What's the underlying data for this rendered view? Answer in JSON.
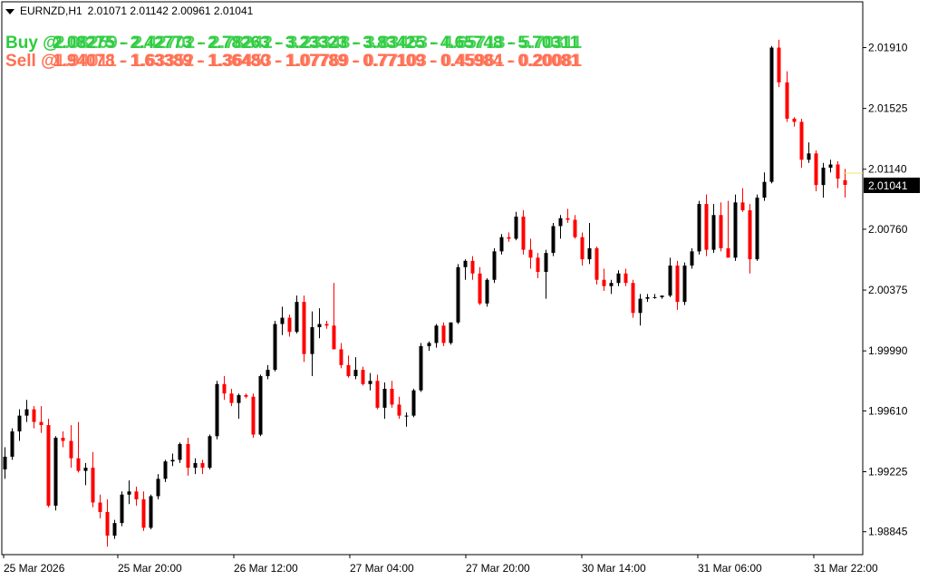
{
  "header": {
    "symbol": "EURNZD,H1",
    "ohlc": "2.01071 2.01142 2.00961 2.01041"
  },
  "overlay": {
    "buy_label": "Buy @",
    "buy_levels": [
      "2.08275 - 2.42773 - 2.78263 - 3.23323 - 3.83425 - 4.65748 - 5.70311",
      "2.08259 - 2.42702 - 2.78242 - 3.23348 - 3.83453 - 4.65713 - 5.70311"
    ],
    "sell_label": "Sell @",
    "sell_levels": [
      "1.94078 - 1.63389 - 1.36480 - 1.07789 - 0.77109 - 0.45984 - 0.20081",
      "1.94011 - 1.63352 - 1.36453 - 1.07769 - 0.77103 - 0.45961 - 0.20081"
    ]
  },
  "colors": {
    "bull": "#000000",
    "bear": "#ff0000",
    "buy_text": "#2ecc40",
    "sell_text": "#ff6f52",
    "price_tag_bg": "#000000",
    "price_tag_text": "#ffffff",
    "current_line": "#f5e66a"
  },
  "chart_data": {
    "type": "candlestick",
    "title": "EURNZD,H1",
    "xlabel": "",
    "ylabel": "",
    "ylim": [
      1.987,
      2.022
    ],
    "y_ticks": [
      "2.01910",
      "2.01525",
      "2.01140",
      "2.00760",
      "2.00375",
      "1.99990",
      "1.99610",
      "1.99225",
      "1.98845"
    ],
    "x_ticks": [
      "25 Mar 2026",
      "25 Mar 20:00",
      "26 Mar 12:00",
      "27 Mar 04:00",
      "27 Mar 20:00",
      "30 Mar 14:00",
      "31 Mar 06:00",
      "31 Mar 22:00"
    ],
    "current_price": "2.01041",
    "candles": [
      [
        1.9924,
        1.9938,
        1.9918,
        1.9932
      ],
      [
        1.9932,
        1.995,
        1.993,
        1.9948
      ],
      [
        1.9948,
        1.9962,
        1.9942,
        1.9958
      ],
      [
        1.9958,
        1.9968,
        1.9954,
        1.9962
      ],
      [
        1.9962,
        1.9964,
        1.995,
        1.9954
      ],
      [
        1.9954,
        1.9964,
        1.9947,
        1.9952
      ],
      [
        1.9952,
        1.9956,
        1.99,
        1.9901
      ],
      [
        1.9901,
        1.9945,
        1.9898,
        1.9944
      ],
      [
        1.9944,
        1.9948,
        1.9938,
        1.9942
      ],
      [
        1.9942,
        1.9952,
        1.9925,
        1.9931
      ],
      [
        1.9931,
        1.9954,
        1.9922,
        1.9923
      ],
      [
        1.9923,
        1.9928,
        1.9914,
        1.9925
      ],
      [
        1.9925,
        1.9935,
        1.99,
        1.9903
      ],
      [
        1.9903,
        1.9908,
        1.9893,
        1.9897
      ],
      [
        1.9897,
        1.9905,
        1.9875,
        1.9882
      ],
      [
        1.9882,
        1.9892,
        1.988,
        1.989
      ],
      [
        1.989,
        1.991,
        1.9888,
        1.9908
      ],
      [
        1.9908,
        1.9917,
        1.9902,
        1.991
      ],
      [
        1.991,
        1.9913,
        1.9901,
        1.9905
      ],
      [
        1.9905,
        1.991,
        1.9885,
        1.9887
      ],
      [
        1.9887,
        1.9908,
        1.9886,
        1.9907
      ],
      [
        1.9907,
        1.9921,
        1.9905,
        1.9918
      ],
      [
        1.9918,
        1.993,
        1.9916,
        1.9929
      ],
      [
        1.9929,
        1.9934,
        1.9926,
        1.993
      ],
      [
        1.993,
        1.9941,
        1.9928,
        1.994
      ],
      [
        1.994,
        1.9944,
        1.992,
        1.9925
      ],
      [
        1.9925,
        1.9931,
        1.9921,
        1.9928
      ],
      [
        1.9928,
        1.993,
        1.9921,
        1.9925
      ],
      [
        1.9925,
        1.9946,
        1.9924,
        1.9945
      ],
      [
        1.9945,
        1.998,
        1.9943,
        1.9978
      ],
      [
        1.9978,
        1.9983,
        1.9968,
        1.9972
      ],
      [
        1.9972,
        1.9975,
        1.9964,
        1.9966
      ],
      [
        1.9966,
        1.9972,
        1.9956,
        1.9971
      ],
      [
        1.9971,
        1.9972,
        1.9969,
        1.997
      ],
      [
        1.997,
        1.9972,
        1.9944,
        1.9946
      ],
      [
        1.9946,
        1.9984,
        1.9945,
        1.9983
      ],
      [
        1.9983,
        1.999,
        1.9981,
        1.9987
      ],
      [
        1.9987,
        2.0018,
        1.9986,
        2.0016
      ],
      [
        2.0016,
        2.0027,
        2.0009,
        2.002
      ],
      [
        2.002,
        2.0022,
        2.0008,
        2.0011
      ],
      [
        2.0011,
        2.0034,
        2.001,
        2.003
      ],
      [
        2.003,
        2.0034,
        1.9992,
        1.9997
      ],
      [
        1.9997,
        2.0024,
        1.9983,
        2.0014
      ],
      [
        2.0014,
        2.0026,
        2.0007,
        2.0016
      ],
      [
        2.0016,
        2.0018,
        2.0013,
        2.0015
      ],
      [
        2.0015,
        2.0042,
        2.0,
        2.0
      ],
      [
        2.0,
        2.0004,
        1.9988,
        1.999
      ],
      [
        1.999,
        1.9996,
        1.9982,
        1.9983
      ],
      [
        1.9983,
        1.9995,
        1.9981,
        1.9987
      ],
      [
        1.9987,
        1.9989,
        1.9977,
        1.9978
      ],
      [
        1.9978,
        1.9985,
        1.9974,
        1.998
      ],
      [
        1.998,
        1.9984,
        1.9962,
        1.9963
      ],
      [
        1.9963,
        1.9979,
        1.9956,
        1.9975
      ],
      [
        1.9975,
        1.998,
        1.9963,
        1.9965
      ],
      [
        1.9965,
        1.997,
        1.9956,
        1.9958
      ],
      [
        1.9958,
        1.996,
        1.9951,
        1.9958
      ],
      [
        1.9958,
        1.9975,
        1.9957,
        1.9974
      ],
      [
        1.9974,
        2.0004,
        1.9973,
        2.0002
      ],
      [
        2.0002,
        2.0005,
        1.9999,
        2.0004
      ],
      [
        2.0004,
        2.0016,
        2.0001,
        2.0015
      ],
      [
        2.0015,
        2.0017,
        2.0002,
        2.0004
      ],
      [
        2.0004,
        2.0017,
        2.0003,
        2.0017
      ],
      [
        2.0017,
        2.0054,
        2.0016,
        2.0052
      ],
      [
        2.0052,
        2.0057,
        2.0044,
        2.0056
      ],
      [
        2.0056,
        2.0059,
        2.0044,
        2.0048
      ],
      [
        2.0048,
        2.0052,
        2.0028,
        2.0029
      ],
      [
        2.0029,
        2.0045,
        2.0027,
        2.0044
      ],
      [
        2.0044,
        2.0064,
        2.0042,
        2.0062
      ],
      [
        2.0062,
        2.0073,
        2.006,
        2.0071
      ],
      [
        2.0071,
        2.0074,
        2.0068,
        2.007
      ],
      [
        2.007,
        2.0087,
        2.0069,
        2.0084
      ],
      [
        2.0084,
        2.0088,
        2.006,
        2.0063
      ],
      [
        2.0063,
        2.007,
        2.0051,
        2.0058
      ],
      [
        2.0058,
        2.0061,
        2.0045,
        2.0049
      ],
      [
        2.0049,
        2.0063,
        2.0032,
        2.0061
      ],
      [
        2.0061,
        2.008,
        2.0059,
        2.0078
      ],
      [
        2.0078,
        2.0085,
        2.007,
        2.0083
      ],
      [
        2.0083,
        2.0089,
        2.008,
        2.0082
      ],
      [
        2.0082,
        2.0085,
        2.007,
        2.0071
      ],
      [
        2.0071,
        2.0074,
        2.0053,
        2.0057
      ],
      [
        2.0057,
        2.008,
        2.0054,
        2.0064
      ],
      [
        2.0064,
        2.0065,
        2.0041,
        2.0044
      ],
      [
        2.0044,
        2.0051,
        2.0037,
        2.004
      ],
      [
        2.004,
        2.0044,
        2.0035,
        2.0042
      ],
      [
        2.0042,
        2.005,
        2.004,
        2.0048
      ],
      [
        2.0048,
        2.0051,
        2.004,
        2.0042
      ],
      [
        2.0042,
        2.0044,
        2.002,
        2.0023
      ],
      [
        2.0023,
        2.0035,
        2.0015,
        2.0032
      ],
      [
        2.0032,
        2.0035,
        2.003,
        2.0033
      ],
      [
        2.0033,
        2.0035,
        2.0032,
        2.0033
      ],
      [
        2.0033,
        2.0034,
        2.0032,
        2.0034
      ],
      [
        2.0034,
        2.0058,
        2.0033,
        2.0053
      ],
      [
        2.0053,
        2.0056,
        2.0025,
        2.003
      ],
      [
        2.003,
        2.0055,
        2.0028,
        2.0053
      ],
      [
        2.0053,
        2.0064,
        2.0051,
        2.0062
      ],
      [
        2.0062,
        2.0094,
        2.006,
        2.0092
      ],
      [
        2.0092,
        2.0098,
        2.0059,
        2.0063
      ],
      [
        2.0063,
        2.0092,
        2.0061,
        2.0085
      ],
      [
        2.0085,
        2.0093,
        2.0062,
        2.0064
      ],
      [
        2.0064,
        2.0094,
        2.0061,
        2.0058
      ],
      [
        2.0058,
        2.0098,
        2.0056,
        2.0093
      ],
      [
        2.0093,
        2.0102,
        2.0087,
        2.0088
      ],
      [
        2.0088,
        2.0092,
        2.0048,
        2.0057
      ],
      [
        2.0057,
        2.0098,
        2.0056,
        2.0096
      ],
      [
        2.0096,
        2.0112,
        2.0094,
        2.0106
      ],
      [
        2.0106,
        2.0192,
        2.0105,
        2.0191
      ],
      [
        2.0191,
        2.0196,
        2.0166,
        2.0169
      ],
      [
        2.0169,
        2.0176,
        2.0144,
        2.0146
      ],
      [
        2.0146,
        2.0147,
        2.0141,
        2.0144
      ],
      [
        2.0144,
        2.0146,
        2.0115,
        2.012
      ],
      [
        2.012,
        2.0131,
        2.0118,
        2.0124
      ],
      [
        2.0124,
        2.0126,
        2.01,
        2.0104
      ],
      [
        2.0104,
        2.0118,
        2.0096,
        2.0115
      ],
      [
        2.0115,
        2.012,
        2.0112,
        2.0117
      ],
      [
        2.0117,
        2.0119,
        2.0102,
        2.0108
      ],
      [
        2.01071,
        2.01142,
        2.00961,
        2.01041
      ]
    ]
  }
}
